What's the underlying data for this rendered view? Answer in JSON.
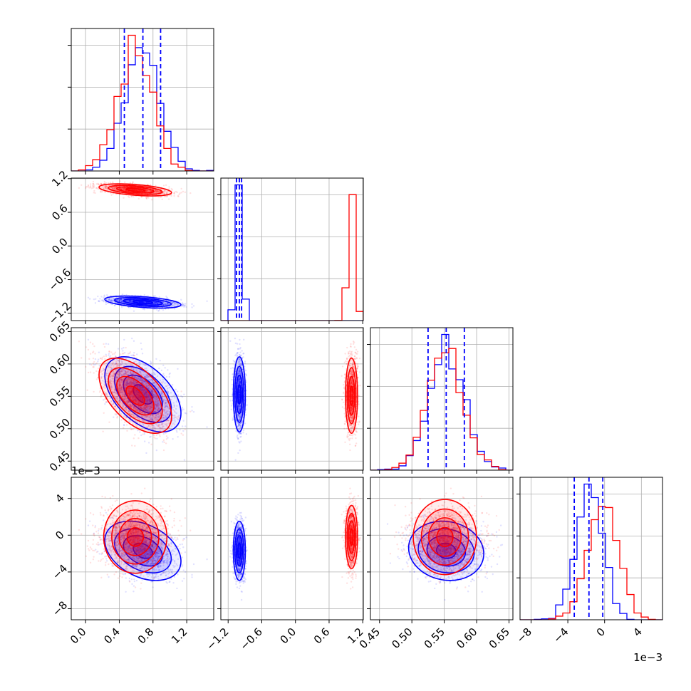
{
  "chart_data": {
    "type": "corner",
    "title": "",
    "colors": {
      "series_a": "#0000ff",
      "series_b": "#ff0000",
      "grid": "#b0b0b0",
      "frame": "#000000"
    },
    "grid": true,
    "series": [
      {
        "color": "#0000ff",
        "means": [
          0.68,
          -1.0,
          0.553,
          -1.7
        ],
        "sds": [
          0.21,
          0.05,
          0.027,
          1.5
        ],
        "corr": {
          "0_1": -0.45,
          "0_2": -0.5,
          "0_3": -0.35,
          "1_2": 0.0,
          "1_3": 0.0,
          "2_3": -0.1
        }
      },
      {
        "color": "#ff0000",
        "means": [
          0.59,
          1.0,
          0.551,
          -0.2
        ],
        "sds": [
          0.2,
          0.05,
          0.027,
          1.6
        ],
        "corr": {
          "0_1": -0.45,
          "0_2": -0.55,
          "0_3": 0.0,
          "1_2": 0.0,
          "1_3": 0.0,
          "2_3": 0.0
        }
      }
    ],
    "quantile_lines": [
      [
        0.46,
        0.68,
        0.89
      ],
      [
        -1.05,
        -1.0,
        -0.96
      ],
      [
        0.525,
        0.553,
        0.581
      ],
      [
        -3.3,
        -1.7,
        -0.2
      ]
    ],
    "params": [
      {
        "index": 0,
        "range": [
          -0.17,
          1.52
        ],
        "ticks": [
          0.0,
          0.4,
          0.8,
          1.2
        ],
        "tick_labels": [
          "0.0",
          "0.4",
          "0.8",
          "1.2"
        ],
        "offset_label": ""
      },
      {
        "index": 1,
        "range": [
          -1.33,
          1.21
        ],
        "ticks": [
          -1.2,
          -0.6,
          0.0,
          0.6,
          1.2
        ],
        "tick_labels": [
          "−1.2",
          "−0.6",
          "0.0",
          "0.6",
          "1.2"
        ],
        "offset_label": ""
      },
      {
        "index": 2,
        "range": [
          0.436,
          0.656
        ],
        "ticks": [
          0.45,
          0.5,
          0.55,
          0.6,
          0.65
        ],
        "tick_labels": [
          "0.45",
          "0.50",
          "0.55",
          "0.60",
          "0.65"
        ],
        "offset_label": ""
      },
      {
        "index": 3,
        "range": [
          -9.2,
          6.3
        ],
        "ticks": [
          -8,
          -4,
          0,
          4
        ],
        "tick_labels": [
          "−8",
          "−4",
          "0",
          "4"
        ],
        "offset_label": "1e−3"
      }
    ]
  }
}
